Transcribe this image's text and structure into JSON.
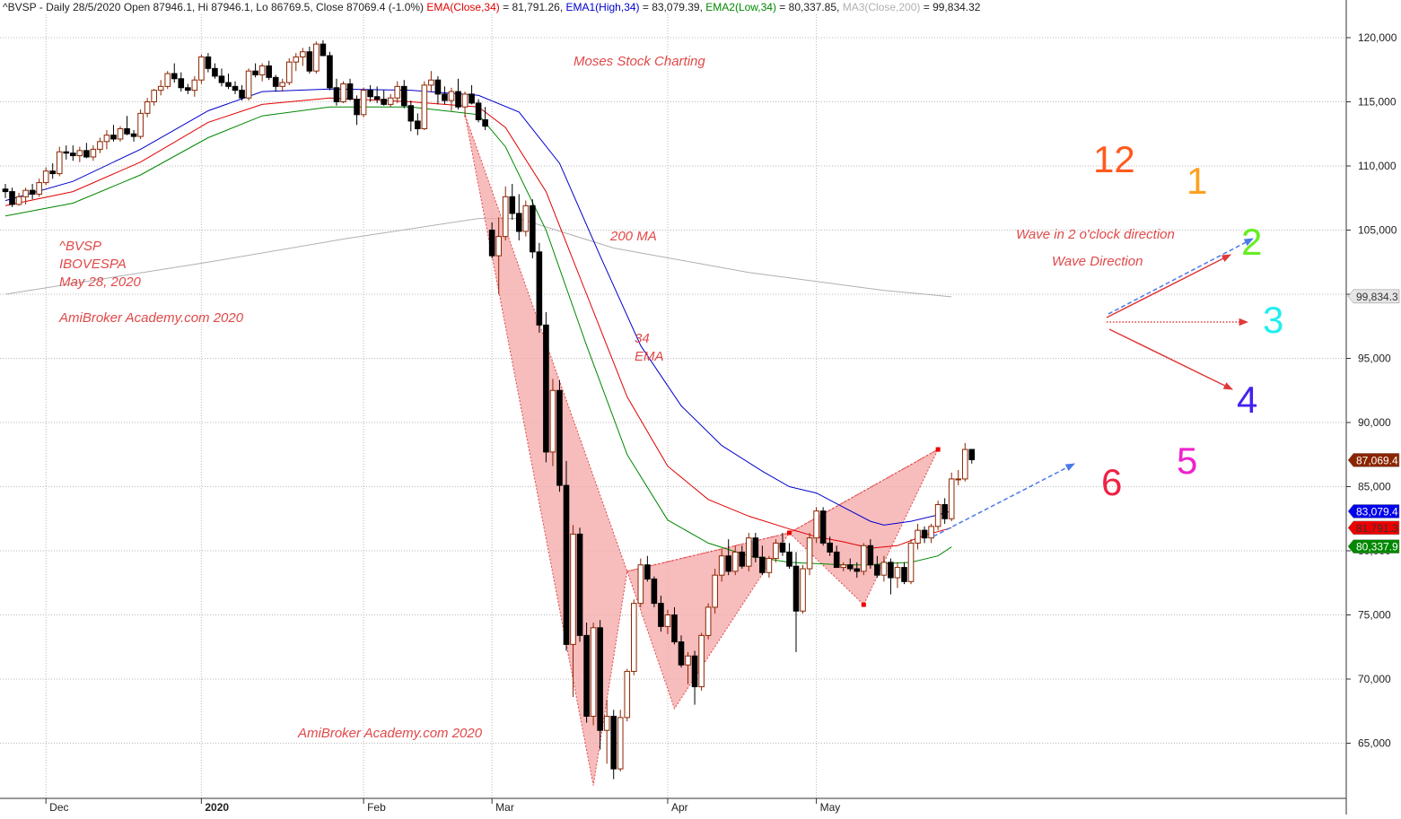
{
  "header": {
    "symbol_line": "^BVSP - Daily 28/5/2020 Open 87946.1, Hi 87946.1, Lo 86769.5, Close 87069.4 (-1.0%)",
    "ema_label": "EMA(Close,34)",
    "ema_value": " = 81,791.26, ",
    "ema1_label": "EMA1(High,34)",
    "ema1_value": " = 83,079.39, ",
    "ema2_label": "EMA2(Low,34)",
    "ema2_value": " = 80,337.85, ",
    "ma3_label": "MA3(Close,200)",
    "ma3_value": " = 99,834.32"
  },
  "annotations": {
    "title": "Moses Stock Charting",
    "ticker": "^BVSP",
    "index_name": "IBOVESPA",
    "date": "May 28, 2020",
    "watermark_top": "AmiBroker Academy.com 2020",
    "watermark_bottom": "AmiBroker Academy.com 2020",
    "ma200": "200 MA",
    "ema34_line1": "34",
    "ema34_line2": "EMA",
    "wave_text": "Wave in 2 o'clock direction",
    "wave_dir": "Wave Direction"
  },
  "clock": [
    {
      "label": "12",
      "color": "#ff5a1f"
    },
    {
      "label": "1",
      "color": "#ffa020"
    },
    {
      "label": "2",
      "color": "#66ee22"
    },
    {
      "label": "3",
      "color": "#22eeee"
    },
    {
      "label": "4",
      "color": "#4422ee"
    },
    {
      "label": "5",
      "color": "#ee22cc"
    },
    {
      "label": "6",
      "color": "#ee2244"
    }
  ],
  "colors": {
    "ema_close": "#e00000",
    "ema_high": "#0000cc",
    "ema_low": "#008800",
    "ma200": "#b0b0b0",
    "bull_candle": "#8b2500",
    "bear_candle": "#000000",
    "pattern_fill": "#f4a6a6",
    "annotation": "#e04848",
    "projection": "#4a7ae8"
  },
  "chart_data": {
    "type": "candlestick",
    "y_axis": {
      "min": 61000,
      "max": 122000,
      "ticks": [
        65000,
        70000,
        75000,
        80000,
        85000,
        90000,
        95000,
        100000,
        105000,
        110000,
        115000,
        120000
      ],
      "tick_labels": [
        "65,000",
        "70,000",
        "75,000",
        "80,000",
        "85,000",
        "90,000",
        "95,000",
        "100,000",
        "105,000",
        "110,000",
        "115,000",
        "120,000"
      ]
    },
    "x_axis": {
      "labels": [
        {
          "label": "Dec",
          "bar": 6
        },
        {
          "label": "2020",
          "bar": 29
        },
        {
          "label": "Feb",
          "bar": 53
        },
        {
          "label": "Mar",
          "bar": 72
        },
        {
          "label": "Apr",
          "bar": 98
        },
        {
          "label": "May",
          "bar": 120
        }
      ]
    },
    "value_labels": [
      {
        "text": "99,834.3",
        "value": 99834.3,
        "bg": "#e6e6e6",
        "fg": "#333333"
      },
      {
        "text": "87,069.4",
        "value": 87069.4,
        "bg": "#8b2500",
        "fg": "#ffffff"
      },
      {
        "text": "83,079.4",
        "value": 83079.4,
        "bg": "#0000ee",
        "fg": "#ffffff"
      },
      {
        "text": "81,791.3",
        "value": 81791.3,
        "bg": "#ee0000",
        "fg": "#333333"
      },
      {
        "text": "80,337.9",
        "value": 80337.9,
        "bg": "#008800",
        "fg": "#ffffff"
      }
    ],
    "candles": [
      [
        108.2,
        108.6,
        107.5,
        108.0
      ],
      [
        108.0,
        108.3,
        106.8,
        107.0
      ],
      [
        107.0,
        107.9,
        106.9,
        107.6
      ],
      [
        107.6,
        108.3,
        107.0,
        108.1
      ],
      [
        108.1,
        108.6,
        107.4,
        107.8
      ],
      [
        107.8,
        109.0,
        107.6,
        108.7
      ],
      [
        108.7,
        109.9,
        108.5,
        109.6
      ],
      [
        109.6,
        110.2,
        109.0,
        109.4
      ],
      [
        109.4,
        111.5,
        109.2,
        111.1
      ],
      [
        111.1,
        111.6,
        110.5,
        111.0
      ],
      [
        111.0,
        111.6,
        110.4,
        110.8
      ],
      [
        110.8,
        111.5,
        110.3,
        111.2
      ],
      [
        111.2,
        111.8,
        110.6,
        110.7
      ],
      [
        110.7,
        111.6,
        110.4,
        111.3
      ],
      [
        111.3,
        112.2,
        111.0,
        111.9
      ],
      [
        111.9,
        112.8,
        111.3,
        112.4
      ],
      [
        112.4,
        113.2,
        111.9,
        112.1
      ],
      [
        112.1,
        113.1,
        111.9,
        112.9
      ],
      [
        112.9,
        113.9,
        112.4,
        112.5
      ],
      [
        112.5,
        112.8,
        111.9,
        112.3
      ],
      [
        112.3,
        114.4,
        112.1,
        114.1
      ],
      [
        114.1,
        115.3,
        113.8,
        115.0
      ],
      [
        115.0,
        116.0,
        114.7,
        115.9
      ],
      [
        115.9,
        116.7,
        115.5,
        116.2
      ],
      [
        116.2,
        117.4,
        116.0,
        117.2
      ],
      [
        117.2,
        118.0,
        116.5,
        116.8
      ],
      [
        116.8,
        117.3,
        115.8,
        116.1
      ],
      [
        116.1,
        116.4,
        115.6,
        115.9
      ],
      [
        115.9,
        117.0,
        115.4,
        116.7
      ],
      [
        116.7,
        118.7,
        116.4,
        118.5
      ],
      [
        118.5,
        118.8,
        117.3,
        117.6
      ],
      [
        117.6,
        118.0,
        116.8,
        117.0
      ],
      [
        117.0,
        117.6,
        116.2,
        116.5
      ],
      [
        116.5,
        117.2,
        116.0,
        116.2
      ],
      [
        116.2,
        116.6,
        115.6,
        115.9
      ],
      [
        115.9,
        116.3,
        115.1,
        115.3
      ],
      [
        115.3,
        117.6,
        115.1,
        117.4
      ],
      [
        117.4,
        118.0,
        116.9,
        117.1
      ],
      [
        117.1,
        118.0,
        116.6,
        117.8
      ],
      [
        117.8,
        118.2,
        116.7,
        116.9
      ],
      [
        116.9,
        117.1,
        115.8,
        116.2
      ],
      [
        116.2,
        116.8,
        115.8,
        116.5
      ],
      [
        116.5,
        118.4,
        116.3,
        118.1
      ],
      [
        118.1,
        118.8,
        117.4,
        118.5
      ],
      [
        118.5,
        119.2,
        117.8,
        118.9
      ],
      [
        118.9,
        119.3,
        117.2,
        117.4
      ],
      [
        117.4,
        119.7,
        117.2,
        119.5
      ],
      [
        119.5,
        119.8,
        118.7,
        118.6
      ],
      [
        118.6,
        118.9,
        115.9,
        116.1
      ],
      [
        116.1,
        116.8,
        114.7,
        115.0
      ],
      [
        115.0,
        116.6,
        114.9,
        116.4
      ],
      [
        116.4,
        116.8,
        115.1,
        115.2
      ],
      [
        115.2,
        115.5,
        113.2,
        114.0
      ],
      [
        114.0,
        116.1,
        113.8,
        115.9
      ],
      [
        115.9,
        116.3,
        115.0,
        115.4
      ],
      [
        115.4,
        116.2,
        114.9,
        115.2
      ],
      [
        115.2,
        115.9,
        114.7,
        114.8
      ],
      [
        114.8,
        115.6,
        114.6,
        115.3
      ],
      [
        115.3,
        116.6,
        114.9,
        116.2
      ],
      [
        116.2,
        116.7,
        114.5,
        114.7
      ],
      [
        114.7,
        115.1,
        112.7,
        113.5
      ],
      [
        113.5,
        114.1,
        112.4,
        112.9
      ],
      [
        112.9,
        116.6,
        112.8,
        116.3
      ],
      [
        116.3,
        117.4,
        115.8,
        116.7
      ],
      [
        116.7,
        117.0,
        114.8,
        115.6
      ],
      [
        115.6,
        116.2,
        114.8,
        115.1
      ],
      [
        115.1,
        116.1,
        114.3,
        115.8
      ],
      [
        115.8,
        116.8,
        114.4,
        114.6
      ],
      [
        114.6,
        115.8,
        113.8,
        115.6
      ],
      [
        115.6,
        116.3,
        114.8,
        114.9
      ],
      [
        114.9,
        115.2,
        113.4,
        113.6
      ],
      [
        113.6,
        114.6,
        112.8,
        113.1
      ],
      [
        105.0,
        105.6,
        102.8,
        103.0
      ],
      [
        103.0,
        106.0,
        100.0,
        104.5
      ],
      [
        104.5,
        108.4,
        104.2,
        107.6
      ],
      [
        107.6,
        108.6,
        105.8,
        106.3
      ],
      [
        106.3,
        107.8,
        104.2,
        104.9
      ],
      [
        104.9,
        107.3,
        104.5,
        106.9
      ],
      [
        106.9,
        107.4,
        102.8,
        103.3
      ],
      [
        103.3,
        104.0,
        97.0,
        97.6
      ],
      [
        97.6,
        98.6,
        86.9,
        87.7
      ],
      [
        87.7,
        93.4,
        86.6,
        92.5
      ],
      [
        92.5,
        93.3,
        84.6,
        85.1
      ],
      [
        85.1,
        87.0,
        72.2,
        72.7
      ],
      [
        72.7,
        82.0,
        68.6,
        81.3
      ],
      [
        81.3,
        81.8,
        72.9,
        73.4
      ],
      [
        73.4,
        74.4,
        66.6,
        67.1
      ],
      [
        67.1,
        74.4,
        66.4,
        74.0
      ],
      [
        74.0,
        74.6,
        64.5,
        66.0
      ],
      [
        66.0,
        68.4,
        63.4,
        67.1
      ],
      [
        67.1,
        67.6,
        62.2,
        63.0
      ],
      [
        63.0,
        67.6,
        62.8,
        67.0
      ],
      [
        67.0,
        70.8,
        66.7,
        70.6
      ],
      [
        70.6,
        76.2,
        70.3,
        75.9
      ],
      [
        75.9,
        79.4,
        75.6,
        78.9
      ],
      [
        78.9,
        79.6,
        77.6,
        77.8
      ],
      [
        77.8,
        78.0,
        75.6,
        75.9
      ],
      [
        75.9,
        76.5,
        73.7,
        74.1
      ],
      [
        74.1,
        75.4,
        73.5,
        75.0
      ],
      [
        75.0,
        75.6,
        72.7,
        72.9
      ],
      [
        72.9,
        73.4,
        70.9,
        71.1
      ],
      [
        71.1,
        72.1,
        69.6,
        71.8
      ],
      [
        71.8,
        72.2,
        68.0,
        69.4
      ],
      [
        69.4,
        73.6,
        69.1,
        73.4
      ],
      [
        73.4,
        75.9,
        73.1,
        75.6
      ],
      [
        75.6,
        78.6,
        75.1,
        78.1
      ],
      [
        78.1,
        80.1,
        77.6,
        79.6
      ],
      [
        79.6,
        80.9,
        78.1,
        78.4
      ],
      [
        78.4,
        80.4,
        78.1,
        79.9
      ],
      [
        79.9,
        80.4,
        78.6,
        78.8
      ],
      [
        78.8,
        81.4,
        78.4,
        81.0
      ],
      [
        81.0,
        81.4,
        79.1,
        79.5
      ],
      [
        79.5,
        80.4,
        78.1,
        78.3
      ],
      [
        78.3,
        79.6,
        77.9,
        79.4
      ],
      [
        79.4,
        80.9,
        79.1,
        80.6
      ],
      [
        80.6,
        81.4,
        79.6,
        79.9
      ],
      [
        79.9,
        80.6,
        78.6,
        78.8
      ],
      [
        78.8,
        79.9,
        72.1,
        75.3
      ],
      [
        75.3,
        78.9,
        75.1,
        78.6
      ],
      [
        78.6,
        81.4,
        78.1,
        81.0
      ],
      [
        81.0,
        83.4,
        80.6,
        83.1
      ],
      [
        83.1,
        83.4,
        80.4,
        80.6
      ],
      [
        80.6,
        81.1,
        79.6,
        79.9
      ],
      [
        79.9,
        80.4,
        78.9,
        78.7
      ],
      [
        78.7,
        79.1,
        78.4,
        78.9
      ],
      [
        78.9,
        79.4,
        78.4,
        78.6
      ],
      [
        78.6,
        79.1,
        77.9,
        78.4
      ],
      [
        78.4,
        80.6,
        78.1,
        80.4
      ],
      [
        80.4,
        80.9,
        78.6,
        78.9
      ],
      [
        78.9,
        79.6,
        77.9,
        78.1
      ],
      [
        78.1,
        79.6,
        77.6,
        79.1
      ],
      [
        79.1,
        79.4,
        76.6,
        77.9
      ],
      [
        77.9,
        79.1,
        77.1,
        78.7
      ],
      [
        78.7,
        79.1,
        77.4,
        77.6
      ],
      [
        77.6,
        80.9,
        77.4,
        80.6
      ],
      [
        80.6,
        82.1,
        80.1,
        81.6
      ],
      [
        81.6,
        81.9,
        80.6,
        81.0
      ],
      [
        81.0,
        82.1,
        80.6,
        81.9
      ],
      [
        81.9,
        83.9,
        81.6,
        83.6
      ],
      [
        83.6,
        84.1,
        82.1,
        82.5
      ],
      [
        82.5,
        86.1,
        82.3,
        85.6
      ],
      [
        85.6,
        86.3,
        85.1,
        85.6
      ],
      [
        85.6,
        88.4,
        85.4,
        87.9
      ],
      [
        87.9,
        87.9,
        86.8,
        87.1
      ]
    ],
    "ema_high_34": [
      [
        0,
        107.3
      ],
      [
        10,
        108.8
      ],
      [
        20,
        111.3
      ],
      [
        30,
        114.3
      ],
      [
        38,
        115.8
      ],
      [
        48,
        116.0
      ],
      [
        60,
        115.9
      ],
      [
        70,
        115.5
      ],
      [
        76,
        114.2
      ],
      [
        82,
        110.2
      ],
      [
        88,
        103.0
      ],
      [
        94,
        96.0
      ],
      [
        100,
        91.3
      ],
      [
        106,
        88.2
      ],
      [
        112,
        86.2
      ],
      [
        116,
        85.0
      ],
      [
        120,
        84.5
      ],
      [
        124,
        83.4
      ],
      [
        128,
        82.3
      ],
      [
        130,
        82.0
      ],
      [
        134,
        82.3
      ],
      [
        138,
        82.8
      ],
      [
        140,
        83.1
      ]
    ],
    "ema_close_34": [
      [
        0,
        106.9
      ],
      [
        10,
        108.0
      ],
      [
        20,
        110.3
      ],
      [
        30,
        113.4
      ],
      [
        38,
        114.8
      ],
      [
        48,
        115.3
      ],
      [
        60,
        115.0
      ],
      [
        70,
        114.6
      ],
      [
        74,
        113.0
      ],
      [
        80,
        108.0
      ],
      [
        86,
        100.0
      ],
      [
        92,
        92.0
      ],
      [
        98,
        86.6
      ],
      [
        104,
        84.0
      ],
      [
        110,
        82.7
      ],
      [
        116,
        81.7
      ],
      [
        120,
        81.1
      ],
      [
        124,
        80.7
      ],
      [
        128,
        80.2
      ],
      [
        132,
        80.4
      ],
      [
        136,
        81.2
      ],
      [
        140,
        81.8
      ]
    ],
    "ema_low_34": [
      [
        0,
        106.1
      ],
      [
        10,
        107.1
      ],
      [
        20,
        109.3
      ],
      [
        30,
        112.2
      ],
      [
        38,
        113.9
      ],
      [
        48,
        114.6
      ],
      [
        60,
        114.6
      ],
      [
        70,
        114.0
      ],
      [
        74,
        111.5
      ],
      [
        80,
        105.0
      ],
      [
        86,
        96.0
      ],
      [
        92,
        87.5
      ],
      [
        98,
        82.4
      ],
      [
        104,
        80.6
      ],
      [
        110,
        79.6
      ],
      [
        116,
        79.1
      ],
      [
        120,
        79.0
      ],
      [
        124,
        78.9
      ],
      [
        128,
        78.9
      ],
      [
        130,
        79.0
      ],
      [
        134,
        79.1
      ],
      [
        138,
        79.6
      ],
      [
        140,
        80.3
      ]
    ],
    "ma_close_200": [
      [
        0,
        100.0
      ],
      [
        30,
        102.5
      ],
      [
        50,
        104.3
      ],
      [
        70,
        105.9
      ],
      [
        76,
        105.9
      ],
      [
        90,
        103.6
      ],
      [
        110,
        101.7
      ],
      [
        130,
        100.3
      ],
      [
        140,
        99.8
      ]
    ],
    "pattern_points": [
      [
        68,
        114.0
      ],
      [
        87,
        61.7
      ],
      [
        92,
        78.4
      ],
      [
        99,
        67.7
      ],
      [
        116,
        81.4
      ],
      [
        127,
        75.8
      ],
      [
        138,
        87.9
      ]
    ],
    "pattern_markers": [
      [
        116,
        81.4
      ],
      [
        127,
        75.8
      ],
      [
        138,
        87.9
      ]
    ]
  }
}
